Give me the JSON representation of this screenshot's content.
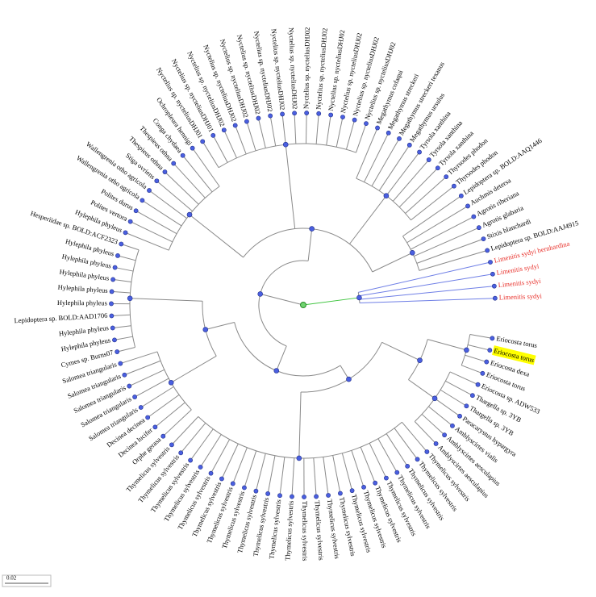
{
  "tree": {
    "highlight_color": "#ffff00",
    "scale_label": "0.02",
    "leaves": [
      {
        "label": "Limenitis sydyi",
        "color": "#e8302a"
      },
      {
        "label": "Limenitis sydyi",
        "color": "#e8302a"
      },
      {
        "label": "Limenitis sydyi",
        "color": "#e8302a"
      },
      {
        "label": "Limenitis sydyi bernhardina",
        "color": "#e8302a"
      },
      {
        "label": "Lepidoptera sp. BOLD:AAJ4915"
      },
      {
        "label": "Stixis blanchardi"
      },
      {
        "label": "Agrotis glabaria"
      },
      {
        "label": "Agrotis riberiana"
      },
      {
        "label": "Auchmis detersa"
      },
      {
        "label": "Lepidoptera sp. BOLD:AAQ1446"
      },
      {
        "label": "Thyrsodes phodon"
      },
      {
        "label": "Thyrsodes phodon"
      },
      {
        "label": "Tyrsola xanthina"
      },
      {
        "label": "Tyrsola xanthina"
      },
      {
        "label": "Tyrsola xanthina"
      },
      {
        "label": "Megathymus ursulus"
      },
      {
        "label": "Megathymus streckeri texanus"
      },
      {
        "label": "Megathymus streckeri"
      },
      {
        "label": "Megathymus cofaqui"
      },
      {
        "label": "Nyctelius sp. nycteliusDHJ02"
      },
      {
        "label": "Nyctelius sp. nycteliusDHJ02"
      },
      {
        "label": "Nyctelius sp. nycteliusDHJ02"
      },
      {
        "label": "Nyctelius sp. nycteliusDHJ02"
      },
      {
        "label": "Nyctelius sp. nycteliusDHJ02"
      },
      {
        "label": "Nyctelius sp. nycteliusDHJ02"
      },
      {
        "label": "Nyctelius sp. nycteliusDHJ02"
      },
      {
        "label": "Nyctelius sp. nycteliusDHJ02"
      },
      {
        "label": "Nyctelius sp. nycteliusDHJ02"
      },
      {
        "label": "Nyctelius sp. nycteliusDHJ02"
      },
      {
        "label": "Nyctelius sp. nycteliusDHJ02"
      },
      {
        "label": "Nyctelius sp. nycteliusDHJ02"
      },
      {
        "label": "Nyctelius sp. nycteliusDHJ02"
      },
      {
        "label": "Nyctelius sp. nycteliusDHJ01"
      },
      {
        "label": "Nyctelius sp. nycteliusDHJ01"
      },
      {
        "label": "Ochropleura hennigi"
      },
      {
        "label": "Conga chydaea"
      },
      {
        "label": "Thespieus othna"
      },
      {
        "label": "Thespieus othna"
      },
      {
        "label": "Stiga ovriens"
      },
      {
        "label": "Wallengrenia otho agricola"
      },
      {
        "label": "Wallengrenia otho agricola"
      },
      {
        "label": "Polites durus"
      },
      {
        "label": "Polites vertora"
      },
      {
        "label": "Hylephila phyleus"
      },
      {
        "label": "Hesperiidae sp. BOLD:ACF2323"
      },
      {
        "label": "Hylephila phyleus"
      },
      {
        "label": "Hylephila phyleus"
      },
      {
        "label": "Hylephila phyleus"
      },
      {
        "label": "Hylephila phyleus"
      },
      {
        "label": "Hylephila phyleus"
      },
      {
        "label": "Lepidoptera sp. BOLD:AAD1706"
      },
      {
        "label": "Hylephila phyleus"
      },
      {
        "label": "Hylephila phyleus"
      },
      {
        "label": "Cymes sp. Burns07"
      },
      {
        "label": "Salomea triangularis"
      },
      {
        "label": "Salomea triangularis"
      },
      {
        "label": "Salomea triangularis"
      },
      {
        "label": "Salomea triangularis"
      },
      {
        "label": "Salomea triangularis"
      },
      {
        "label": "Decinea decinea"
      },
      {
        "label": "Decinea lucifer"
      },
      {
        "label": "Orphe gerasa"
      },
      {
        "label": "Thymelicus sylvestris"
      },
      {
        "label": "Thymelicus sylvestris"
      },
      {
        "label": "Thymelicus sylvestris"
      },
      {
        "label": "Thymelicus sylvestris"
      },
      {
        "label": "Thymelicus sylvestris"
      },
      {
        "label": "Thymelicus sylvestris"
      },
      {
        "label": "Thymelicus sylvestris"
      },
      {
        "label": "Thymelicus sylvestris"
      },
      {
        "label": "Thymelicus sylvestris"
      },
      {
        "label": "Thymelicus sylvestris"
      },
      {
        "label": "Thymelicus sylvestris"
      },
      {
        "label": "Thymelicus sylvestris"
      },
      {
        "label": "Thymelicus sylvestris"
      },
      {
        "label": "Thymelicus sylvestris"
      },
      {
        "label": "Thymelicus sylvestris"
      },
      {
        "label": "Thymelicus sylvestris"
      },
      {
        "label": "Thymelicus sylvestris"
      },
      {
        "label": "Thymelicus sylvestris"
      },
      {
        "label": "Thymelicus sylvestris"
      },
      {
        "label": "Thymelicus sylvestris"
      },
      {
        "label": "Thymelicus sylvestris"
      },
      {
        "label": "Thymelicus sylvestris"
      },
      {
        "label": "Thymelicus sylvestris"
      },
      {
        "label": "Thymelicus sylvestris"
      },
      {
        "label": "Amblyscirtes aesculapius"
      },
      {
        "label": "Amblyscirtes aesculapius"
      },
      {
        "label": "Amblyscirtes vialis"
      },
      {
        "label": "Paracarystus hypargyra"
      },
      {
        "label": "Thargella sp. 3YB"
      },
      {
        "label": "Thargella sp. 3YB"
      },
      {
        "label": "Eriocosta sp. ADW533"
      },
      {
        "label": "Eriocosta torus"
      },
      {
        "label": "Eriocosta dexa"
      },
      {
        "label": "Eriocosta torus",
        "highlighted": true
      },
      {
        "label": "Eriocosta torus"
      }
    ]
  }
}
